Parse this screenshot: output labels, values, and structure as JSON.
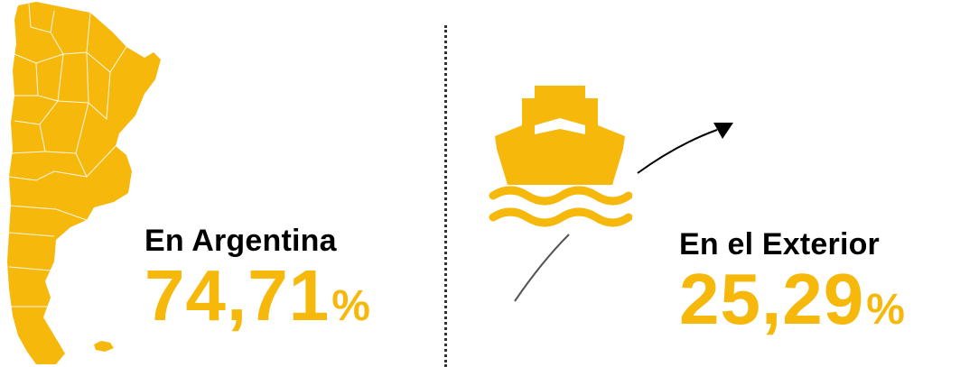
{
  "colors": {
    "accent": "#f5b80b",
    "map_lines": "#ffffff",
    "text": "#000000",
    "divider": "#333333"
  },
  "argentina": {
    "label": "En Argentina",
    "value": "74,71",
    "unit": "%",
    "icon": "argentina-map-icon"
  },
  "exterior": {
    "label": "En el Exterior",
    "value": "25,29",
    "unit": "%",
    "icon": "ship-icon"
  }
}
